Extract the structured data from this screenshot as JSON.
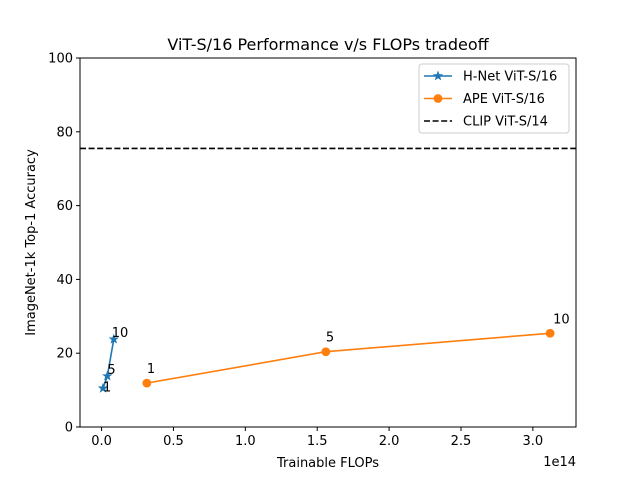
{
  "chart_data": {
    "type": "line",
    "title": "ViT-S/16 Performance v/s FLOPs tradeoff",
    "xlabel": "Trainable FLOPs",
    "ylabel": "ImageNet-1k Top-1 Accuracy",
    "x_offset_label": "1e14",
    "xlim": [
      -0.15,
      3.3
    ],
    "ylim": [
      0,
      100
    ],
    "x_ticks": [
      0.0,
      0.5,
      1.0,
      1.5,
      2.0,
      2.5,
      3.0
    ],
    "x_tick_labels": [
      "0.0",
      "0.5",
      "1.0",
      "1.5",
      "2.0",
      "2.5",
      "3.0"
    ],
    "y_ticks": [
      0,
      20,
      40,
      60,
      80,
      100
    ],
    "y_tick_labels": [
      "0",
      "20",
      "40",
      "60",
      "80",
      "100"
    ],
    "grid": false,
    "legend_position": "top-right",
    "series": [
      {
        "name": "H-Net ViT-S/16",
        "color": "#1f77b4",
        "marker": "star",
        "line_style": "solid",
        "x": [
          0.01,
          0.04,
          0.085
        ],
        "y": [
          10.5,
          13.8,
          23.8
        ],
        "point_labels": [
          "1",
          "5",
          "10"
        ]
      },
      {
        "name": "APE ViT-S/16",
        "color": "#ff7f0e",
        "marker": "circle",
        "line_style": "solid",
        "x": [
          0.315,
          1.56,
          3.12
        ],
        "y": [
          11.9,
          20.4,
          25.4
        ],
        "point_labels": [
          "1",
          "5",
          "10"
        ]
      }
    ],
    "reference_lines": [
      {
        "name": "CLIP ViT-S/14",
        "color": "#000000",
        "line_style": "dashed",
        "y": 75.5
      }
    ]
  }
}
